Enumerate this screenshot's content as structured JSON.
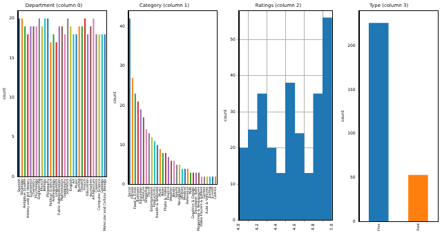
{
  "chart_data": [
    {
      "type": "bar",
      "title": "Department (column 0)",
      "y_label": "count",
      "categories": [
        "Spanish",
        "Sociology",
        "Religious Studies",
        "History and Art History",
        "Economics",
        "Chemistry",
        "Psychology",
        "Engineering",
        "Physics",
        "Biology",
        "Philosophy",
        "Political Science",
        "Anthropology",
        "Linguistics",
        "Public Administration",
        "Mathematics",
        "Geography",
        "Statistics",
        "English",
        "Art",
        "Music",
        "Nursing",
        "Theatre",
        "French",
        "Education",
        "Journalism",
        "Architecture",
        "Classics",
        "Computer Science",
        "Geology",
        "Molecular and Cellular Biology"
      ],
      "values": [
        20,
        20,
        19,
        18,
        19,
        19,
        19,
        20,
        19,
        20,
        20,
        17,
        18,
        17,
        19,
        19,
        18,
        20,
        19,
        18,
        18,
        19,
        19,
        20,
        18,
        19,
        20,
        18,
        18,
        18,
        18
      ],
      "colors": [
        "#1f77b4",
        "#ff7f0e",
        "#2ca02c",
        "#d62728",
        "#9467bd",
        "#8c564b",
        "#e377c2",
        "#7f7f7f",
        "#bcbd22",
        "#17becf",
        "#1f77b4",
        "#ff7f0e",
        "#2ca02c",
        "#d62728",
        "#9467bd",
        "#8c564b",
        "#e377c2",
        "#7f7f7f",
        "#bcbd22",
        "#17becf",
        "#1f77b4",
        "#ff7f0e",
        "#2ca02c",
        "#d62728",
        "#9467bd",
        "#8c564b",
        "#e377c2",
        "#7f7f7f",
        "#bcbd22",
        "#17becf",
        "#1f77b4"
      ],
      "ylim": [
        0,
        21
      ],
      "yticks": [
        0,
        5,
        10,
        15,
        20
      ],
      "grid": false
    },
    {
      "type": "bar",
      "title": "Category (column 1)",
      "y_label": "count",
      "categories": [
        "Social",
        "Fitness",
        "Food & Drink",
        "Business",
        "Education",
        "Lifestyle",
        "Shopping",
        "Travel",
        "Entertainment",
        "Productivity",
        "Health & Wellness",
        "Music",
        "News",
        "Photo & Video",
        "Finance",
        "Weather",
        "Books",
        "Sports",
        "Navigation",
        "Utilities",
        "Medical",
        "Reference",
        "Kids",
        "Graphics & Design",
        "Developer Tools",
        "Magazines & Newspapers",
        "Video Players & Editors",
        "Games",
        "Auto & Vehicles",
        "Dating",
        "Events",
        "Comics"
      ],
      "values": [
        42,
        27,
        23,
        21,
        19,
        17,
        14,
        13,
        12,
        11,
        10,
        9,
        8,
        8,
        7,
        6,
        6,
        5,
        5,
        4,
        4,
        4,
        3,
        3,
        3,
        3,
        2,
        2,
        2,
        2,
        2,
        2
      ],
      "colors": [
        "#1f77b4",
        "#ff7f0e",
        "#2ca02c",
        "#d62728",
        "#9467bd",
        "#8c564b",
        "#e377c2",
        "#7f7f7f",
        "#bcbd22",
        "#17becf",
        "#1f77b4",
        "#ff7f0e",
        "#2ca02c",
        "#d62728",
        "#9467bd",
        "#8c564b",
        "#e377c2",
        "#7f7f7f",
        "#bcbd22",
        "#17becf",
        "#1f77b4",
        "#ff7f0e",
        "#2ca02c",
        "#d62728",
        "#9467bd",
        "#8c564b",
        "#e377c2",
        "#7f7f7f",
        "#bcbd22",
        "#17becf",
        "#1f77b4",
        "#ff7f0e"
      ],
      "ylim": [
        0,
        44
      ],
      "yticks": [
        0,
        10,
        20,
        30,
        40
      ],
      "grid": false
    },
    {
      "type": "histogram",
      "title": "Ratings (column 2)",
      "y_label": "count",
      "bins": [
        4.0,
        4.1,
        4.2,
        4.3,
        4.4,
        4.5,
        4.6,
        4.7,
        4.8,
        4.9,
        5.0
      ],
      "values": [
        20,
        25,
        35,
        20,
        13,
        38,
        24,
        13,
        35,
        56
      ],
      "color": "#1f77b4",
      "xlim": [
        4.0,
        5.0
      ],
      "xticks": [
        {
          "value": 4,
          "label": "4.0"
        },
        4.2,
        4.4,
        4.6,
        4.8,
        {
          "value": 5,
          "label": "5.0"
        }
      ],
      "ylim": [
        0,
        58
      ],
      "yticks": [
        0,
        10,
        20,
        30,
        40,
        50
      ],
      "grid": true
    },
    {
      "type": "bar",
      "title": "Type (column 3)",
      "y_label": "count",
      "categories": [
        "Free",
        "Paid"
      ],
      "values": [
        226,
        53
      ],
      "colors": [
        "#1f77b4",
        "#ff7f0e"
      ],
      "ylim": [
        0,
        240
      ],
      "yticks": [
        0,
        50,
        100,
        150,
        200
      ],
      "grid": false
    }
  ]
}
